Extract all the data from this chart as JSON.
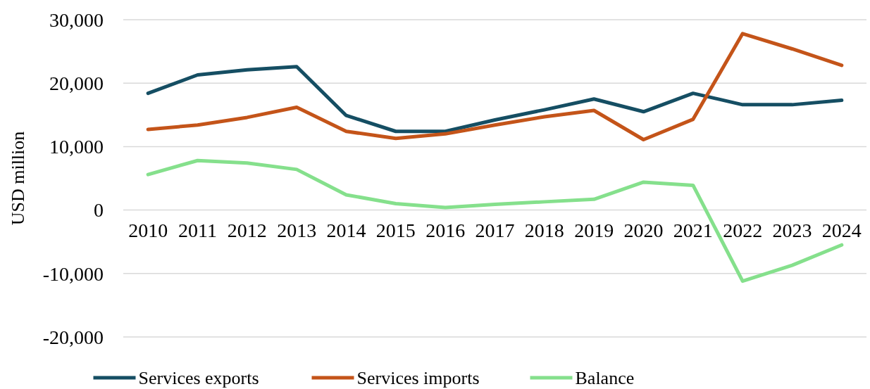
{
  "chart_data": {
    "type": "line",
    "ylabel": "USD million",
    "categories": [
      "2010",
      "2011",
      "2012",
      "2013",
      "2014",
      "2015",
      "2016",
      "2017",
      "2018",
      "2019",
      "2020",
      "2021",
      "2022",
      "2023",
      "2024"
    ],
    "series": [
      {
        "name": "Services exports",
        "color": "#154e63",
        "values": [
          18400,
          21300,
          22100,
          22600,
          14900,
          12400,
          12400,
          14200,
          15800,
          17500,
          15500,
          18400,
          16600,
          16600,
          17300
        ]
      },
      {
        "name": "Services imports",
        "color": "#c45419",
        "values": [
          12700,
          13400,
          14600,
          16200,
          12400,
          11300,
          12000,
          13400,
          14700,
          15700,
          11100,
          14300,
          27800,
          25400,
          22800
        ]
      },
      {
        "name": "Balance",
        "color": "#85e08c",
        "values": [
          5600,
          7800,
          7400,
          6400,
          2400,
          1000,
          400,
          900,
          1300,
          1700,
          4400,
          3900,
          -11200,
          -8700,
          -5500
        ]
      }
    ],
    "ylim": [
      -20000,
      30000
    ],
    "yticks": [
      {
        "value": -20000,
        "label": "-20,000"
      },
      {
        "value": -10000,
        "label": "-10,000"
      },
      0,
      {
        "value": 10000,
        "label": "10,000"
      },
      {
        "value": 20000,
        "label": "20,000"
      },
      {
        "value": 30000,
        "label": "30,000"
      }
    ],
    "grid": "y",
    "legend": "bottom",
    "line_style": "solid"
  }
}
